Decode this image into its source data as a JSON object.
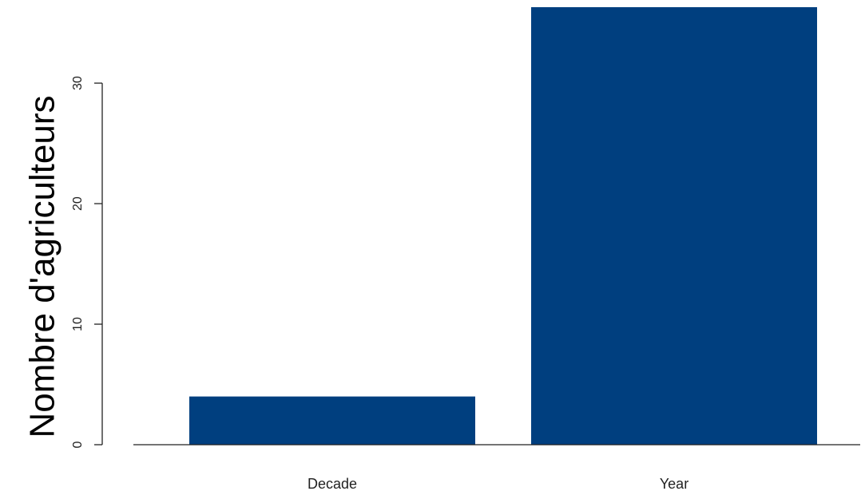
{
  "chart_data": {
    "type": "bar",
    "title": "",
    "xlabel": "",
    "ylabel": "Nombre d'agriculteurs",
    "categories": [
      "Decade",
      "Year"
    ],
    "values": [
      4,
      36.3
    ],
    "ylim": [
      0,
      36.3
    ],
    "yticks": [
      0,
      10,
      20,
      30
    ],
    "ytick_labels": [
      "0",
      "10",
      "20",
      "30"
    ],
    "bar_color": "#003f7f",
    "grid": false,
    "legend": "none"
  }
}
